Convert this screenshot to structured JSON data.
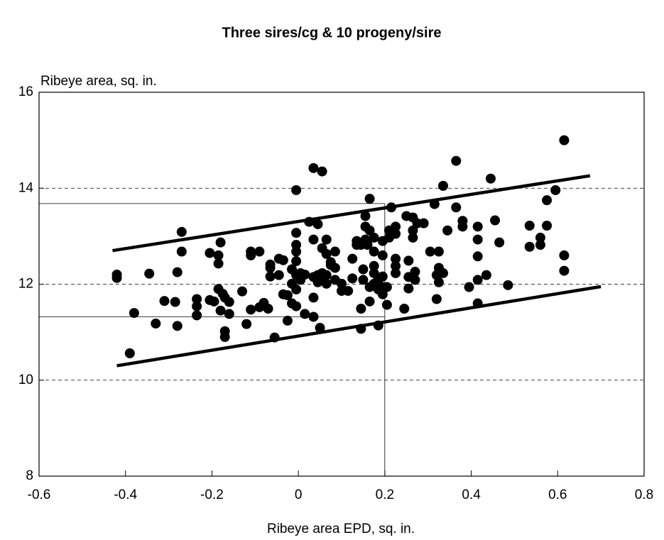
{
  "chart_data": {
    "type": "scatter",
    "title": "Three sires/cg & 10 progeny/sire",
    "x_label": "Ribeye area EPD, sq. in.",
    "y_label": "Ribeye area, sq. in.",
    "color": "#000000",
    "xlim": [
      -0.6,
      0.8
    ],
    "xticks": [
      -0.6,
      -0.4,
      -0.2,
      0,
      0.2,
      0.4,
      0.6,
      0.8
    ],
    "ylim": [
      8,
      16
    ],
    "yticks": [
      8,
      10,
      12,
      14,
      16
    ],
    "grid": true,
    "x": [
      -0.42,
      -0.42,
      -0.39,
      -0.38,
      -0.345,
      -0.33,
      -0.31,
      -0.285,
      -0.28,
      -0.28,
      -0.27,
      -0.27,
      -0.235,
      -0.235,
      -0.235,
      -0.205,
      -0.205,
      -0.195,
      -0.185,
      -0.185,
      -0.185,
      -0.18,
      -0.175,
      -0.18,
      -0.17,
      -0.17,
      -0.17,
      -0.16,
      -0.16,
      -0.13,
      -0.12,
      -0.11,
      -0.11,
      -0.11,
      -0.09,
      -0.09,
      -0.08,
      -0.07,
      -0.065,
      -0.065,
      -0.065,
      -0.055,
      -0.045,
      -0.045,
      -0.035,
      -0.035,
      -0.025,
      -0.025,
      -0.015,
      -0.015,
      -0.015,
      -0.005,
      -0.005,
      -0.005,
      -0.005,
      -0.005,
      -0.005,
      -0.005,
      -0.005,
      0.005,
      0.005,
      0.015,
      0.015,
      0.025,
      0.035,
      0.035,
      0.035,
      0.035,
      0.035,
      0.045,
      0.045,
      0.045,
      0.055,
      0.055,
      0.055,
      0.055,
      0.05,
      0.065,
      0.065,
      0.065,
      0.065,
      0.075,
      0.075,
      0.085,
      0.085,
      0.085,
      0.1,
      0.1,
      0.115,
      0.125,
      0.125,
      0.135,
      0.135,
      0.145,
      0.145,
      0.145,
      0.15,
      0.15,
      0.155,
      0.155,
      0.155,
      0.16,
      0.165,
      0.165,
      0.165,
      0.165,
      0.175,
      0.175,
      0.175,
      0.175,
      0.175,
      0.185,
      0.185,
      0.185,
      0.195,
      0.195,
      0.195,
      0.195,
      0.195,
      0.205,
      0.205,
      0.21,
      0.21,
      0.215,
      0.225,
      0.225,
      0.225,
      0.225,
      0.225,
      0.245,
      0.25,
      0.255,
      0.255,
      0.255,
      0.265,
      0.265,
      0.265,
      0.27,
      0.27,
      0.275,
      0.29,
      0.305,
      0.315,
      0.32,
      0.32,
      0.325,
      0.325,
      0.325,
      0.325,
      0.335,
      0.335,
      0.345,
      0.365,
      0.365,
      0.38,
      0.38,
      0.395,
      0.415,
      0.415,
      0.415,
      0.415,
      0.415,
      0.435,
      0.445,
      0.455,
      0.465,
      0.485,
      0.535,
      0.535,
      0.56,
      0.56,
      0.575,
      0.575,
      0.595,
      0.615,
      0.615,
      0.615
    ],
    "values": [
      12.2,
      12.13,
      10.56,
      11.4,
      12.22,
      11.18,
      11.65,
      11.63,
      12.25,
      11.13,
      13.09,
      12.68,
      11.69,
      11.54,
      11.35,
      12.65,
      11.67,
      11.64,
      12.6,
      12.43,
      11.9,
      12.87,
      11.8,
      11.45,
      11.72,
      11.02,
      10.9,
      11.63,
      11.38,
      11.85,
      11.17,
      12.68,
      12.6,
      11.47,
      12.68,
      11.52,
      11.61,
      11.49,
      12.41,
      12.34,
      12.16,
      10.89,
      12.19,
      12.53,
      12.5,
      11.79,
      11.77,
      11.24,
      11.6,
      12.01,
      12.31,
      12.48,
      12.68,
      12.82,
      13.07,
      13.96,
      12.19,
      11.89,
      11.54,
      12.23,
      12.09,
      12.2,
      11.38,
      13.3,
      14.42,
      12.93,
      12.15,
      11.72,
      11.32,
      13.25,
      12.04,
      12.19,
      14.35,
      12.75,
      12.23,
      12.09,
      11.09,
      12.93,
      12.63,
      12.19,
      12.01,
      12.46,
      12.4,
      12.68,
      12.34,
      12.09,
      11.86,
      12.01,
      11.86,
      12.53,
      12.12,
      12.9,
      12.82,
      12.82,
      11.49,
      11.07,
      12.31,
      12.09,
      13.42,
      13.2,
      12.93,
      12.82,
      13.78,
      13.12,
      11.94,
      11.64,
      12.97,
      12.68,
      12.38,
      12.23,
      12.01,
      11.14,
      12.09,
      11.89,
      12.9,
      12.6,
      12.16,
      11.94,
      11.79,
      11.94,
      11.57,
      13.12,
      12.97,
      13.6,
      13.2,
      13.05,
      12.53,
      12.38,
      12.23,
      11.49,
      13.42,
      12.49,
      12.15,
      11.91,
      13.39,
      13.12,
      12.97,
      12.26,
      12.09,
      13.27,
      13.27,
      12.68,
      13.67,
      12.19,
      11.69,
      12.68,
      12.34,
      12.23,
      12.04,
      12.23,
      14.05,
      13.12,
      14.57,
      13.6,
      13.32,
      13.2,
      11.94,
      13.2,
      12.93,
      12.58,
      12.09,
      11.6,
      12.19,
      14.2,
      13.33,
      12.87,
      11.98,
      13.22,
      12.78,
      12.97,
      12.82,
      13.75,
      13.22,
      13.96,
      15.0,
      12.6,
      12.28
    ],
    "trend_lines": [
      {
        "x": [
          -0.43,
          0.675
        ],
        "y": [
          12.7,
          14.26
        ]
      },
      {
        "x": [
          -0.42,
          0.7
        ],
        "y": [
          10.3,
          11.95
        ]
      }
    ],
    "reference_lines": {
      "x": 0.2,
      "y": [
        13.68,
        11.32
      ]
    }
  }
}
